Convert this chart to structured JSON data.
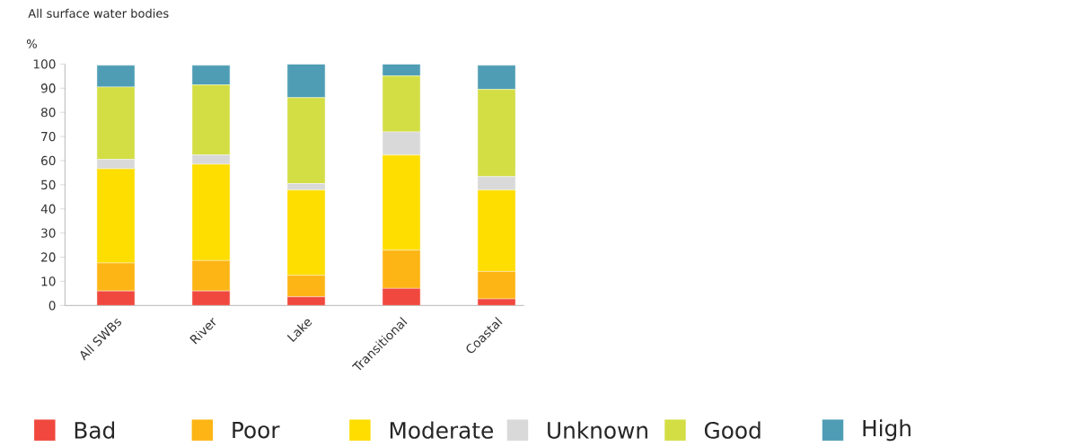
{
  "chart_data": {
    "type": "bar",
    "stacked": true,
    "title": "All surface water bodies",
    "ylabel": "%",
    "categories": [
      "All SWBs",
      "River",
      "Lake",
      "Transitional",
      "Coastal"
    ],
    "series": [
      {
        "name": "Bad",
        "color": "#f0483e",
        "values": [
          6.0,
          6.0,
          3.6,
          7.1,
          2.7
        ]
      },
      {
        "name": "Poor",
        "color": "#fdb515",
        "values": [
          11.6,
          12.6,
          8.9,
          15.8,
          11.4
        ]
      },
      {
        "name": "Moderate",
        "color": "#fedd00",
        "values": [
          39.0,
          39.9,
          35.3,
          39.4,
          33.7
        ]
      },
      {
        "name": "Unknown",
        "color": "#d9d9d9",
        "values": [
          3.9,
          3.9,
          2.7,
          9.6,
          5.6
        ]
      },
      {
        "name": "Good",
        "color": "#d3de45",
        "values": [
          30.0,
          29.0,
          35.6,
          23.2,
          36.1
        ]
      },
      {
        "name": "High",
        "color": "#4f9db5",
        "values": [
          9.0,
          8.1,
          13.9,
          4.9,
          10.0
        ]
      }
    ],
    "ylim": [
      0,
      100
    ],
    "yticks": [
      0,
      10,
      20,
      30,
      40,
      50,
      60,
      70,
      80,
      90,
      100
    ],
    "legend": "bottom"
  }
}
